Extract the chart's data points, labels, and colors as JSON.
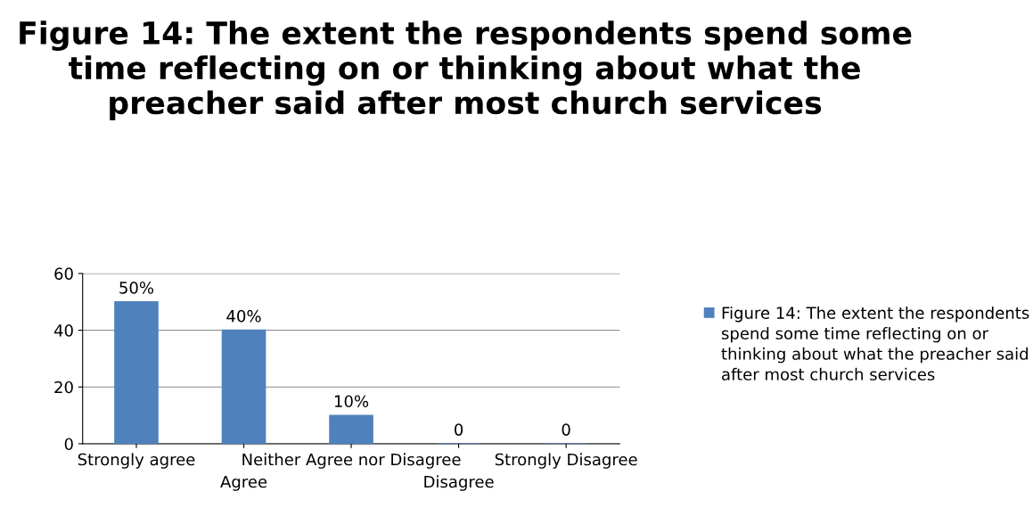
{
  "chart_data": {
    "type": "bar",
    "title": "Figure 14: The extent the respondents spend some time reflecting on or thinking about what the preacher said after most church services",
    "categories": [
      "Strongly agree",
      "Agree",
      "Neither Agree nor Disagree",
      "Disagree",
      "Strongly Disagree"
    ],
    "series": [
      {
        "name": "Figure 14: The extent the respondents spend some time reflecting on or thinking about what the preacher said after most church services",
        "color": "#4f81bd",
        "values": [
          50,
          40,
          10,
          0,
          0
        ],
        "value_labels": [
          "50%",
          "40%",
          "10%",
          "0",
          "0"
        ]
      }
    ],
    "ylim": [
      0,
      60
    ],
    "yticks": [
      0,
      20,
      40,
      60
    ],
    "grid": "y",
    "legend": "right"
  }
}
